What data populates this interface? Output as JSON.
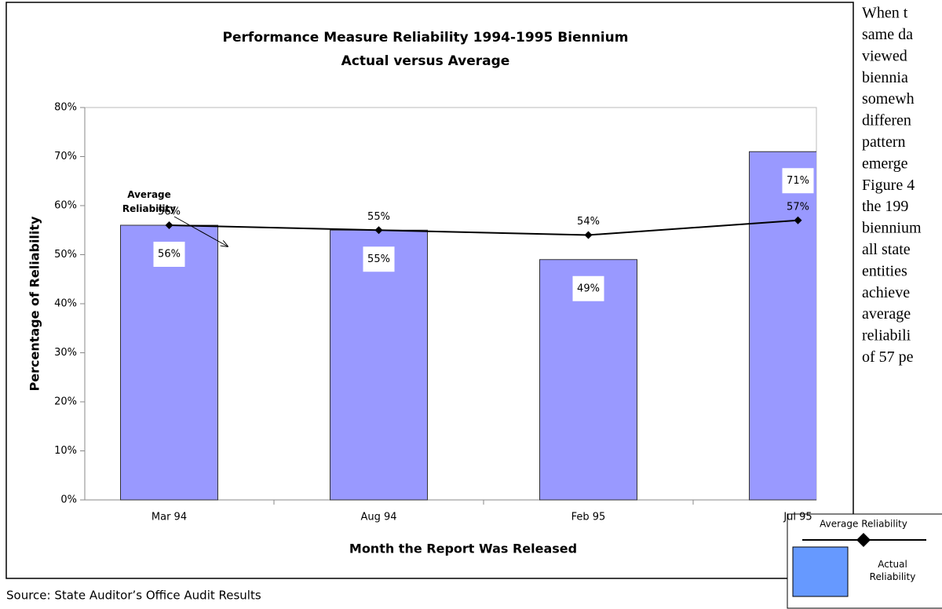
{
  "chart_data": {
    "type": "bar",
    "title": "Performance Measure Reliability 1994-1995 Biennium",
    "subtitle": "Actual versus Average",
    "x_label": "Month the Report Was Released",
    "y_label": "Percentage of Reliability",
    "annotation": "Average Reliability",
    "categories": [
      "Mar 94",
      "Aug 94",
      "Feb 95",
      "Jul 95"
    ],
    "series": [
      {
        "name": "Actual Reliability",
        "type": "bar",
        "color": "#9999ff",
        "legend_color": "#6699ff",
        "values": [
          56,
          55,
          49,
          71
        ],
        "value_labels": [
          "56%",
          "55%",
          "49%",
          "71%"
        ]
      },
      {
        "name": "Average Reliability",
        "type": "line",
        "color": "#000000",
        "values": [
          56,
          55,
          54,
          57
        ],
        "value_labels": [
          "56%",
          "55%",
          "54%",
          "57%"
        ]
      }
    ],
    "ylim": [
      0,
      80
    ],
    "yticks": [
      {
        "value": 0,
        "label": "0%"
      },
      {
        "value": 10,
        "label": "10%"
      },
      {
        "value": 20,
        "label": "20%"
      },
      {
        "value": 30,
        "label": "30%"
      },
      {
        "value": 40,
        "label": "40%"
      },
      {
        "value": 50,
        "label": "50%"
      },
      {
        "value": 60,
        "label": "60%"
      },
      {
        "value": 70,
        "label": "70%"
      },
      {
        "value": 80,
        "label": "80%"
      }
    ],
    "grid": false,
    "source": "Source: State Auditor’s Office Audit Results"
  },
  "side_text": [
    "When t",
    "same da",
    "viewed",
    "biennia",
    "somewh",
    "differen",
    "pattern",
    "emerge",
    "Figure 4",
    "the 199",
    "biennium",
    "all state",
    "entities",
    "achieve",
    "average",
    "reliabili",
    "of 57 pe"
  ]
}
